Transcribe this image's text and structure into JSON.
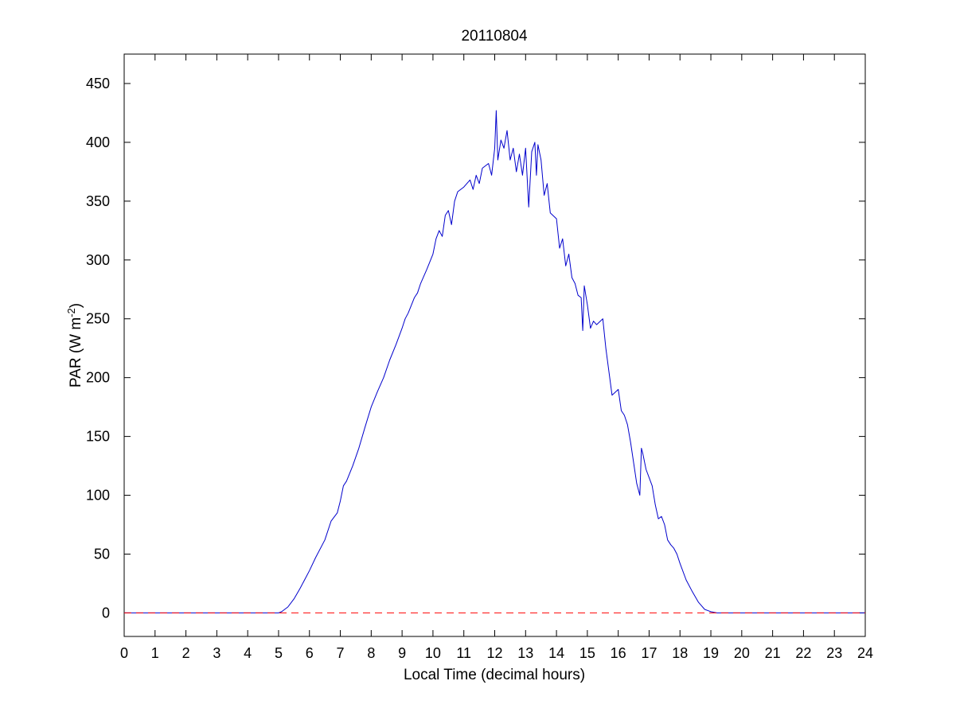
{
  "chart_data": {
    "type": "line",
    "title": "20110804",
    "xlabel": "Local Time (decimal hours)",
    "ylabel": "PAR (W m",
    "ylabel_sup": "-2",
    "ylabel_close": ")",
    "xlim": [
      0,
      24
    ],
    "ylim": [
      -20,
      475
    ],
    "xticks": [
      0,
      1,
      2,
      3,
      4,
      5,
      6,
      7,
      8,
      9,
      10,
      11,
      12,
      13,
      14,
      15,
      16,
      17,
      18,
      19,
      20,
      21,
      22,
      23,
      24
    ],
    "yticks": [
      0,
      50,
      100,
      150,
      200,
      250,
      300,
      350,
      400,
      450
    ],
    "grid": false,
    "colors": {
      "par": "#0000cc",
      "zero_line": "#ff0000"
    },
    "series": [
      {
        "style": "solid",
        "x": [
          0.0,
          5.0,
          5.1,
          5.3,
          5.5,
          5.7,
          6.0,
          6.2,
          6.5,
          6.7,
          6.9,
          7.0,
          7.1,
          7.2,
          7.4,
          7.6,
          7.8,
          8.0,
          8.2,
          8.4,
          8.6,
          8.8,
          9.0,
          9.1,
          9.2,
          9.4,
          9.5,
          9.6,
          9.8,
          10.0,
          10.1,
          10.2,
          10.3,
          10.4,
          10.5,
          10.6,
          10.7,
          10.8,
          11.0,
          11.2,
          11.3,
          11.4,
          11.5,
          11.6,
          11.8,
          11.9,
          12.0,
          12.05,
          12.1,
          12.2,
          12.3,
          12.4,
          12.5,
          12.6,
          12.7,
          12.8,
          12.9,
          13.0,
          13.1,
          13.2,
          13.3,
          13.35,
          13.4,
          13.5,
          13.6,
          13.7,
          13.8,
          14.0,
          14.1,
          14.2,
          14.3,
          14.4,
          14.5,
          14.6,
          14.7,
          14.8,
          14.85,
          14.9,
          15.0,
          15.1,
          15.2,
          15.3,
          15.5,
          15.6,
          15.7,
          15.8,
          16.0,
          16.1,
          16.2,
          16.3,
          16.4,
          16.6,
          16.7,
          16.75,
          16.8,
          16.9,
          17.0,
          17.1,
          17.2,
          17.3,
          17.4,
          17.5,
          17.6,
          17.7,
          17.8,
          17.9,
          18.0,
          18.2,
          18.4,
          18.6,
          18.8,
          19.0,
          19.2,
          19.4,
          19.5,
          19.7,
          20.0,
          24.0
        ],
        "y": [
          0,
          0,
          1,
          5,
          12,
          21,
          36,
          47,
          62,
          78,
          85,
          95,
          108,
          112,
          125,
          140,
          158,
          175,
          188,
          200,
          215,
          228,
          242,
          250,
          255,
          268,
          272,
          280,
          292,
          305,
          318,
          325,
          320,
          338,
          342,
          330,
          350,
          358,
          362,
          368,
          360,
          372,
          365,
          378,
          382,
          372,
          395,
          427,
          385,
          402,
          395,
          410,
          385,
          395,
          375,
          390,
          372,
          395,
          345,
          392,
          400,
          372,
          398,
          385,
          355,
          365,
          340,
          335,
          310,
          318,
          295,
          305,
          285,
          280,
          270,
          268,
          240,
          278,
          262,
          242,
          248,
          245,
          250,
          225,
          205,
          185,
          190,
          172,
          168,
          160,
          145,
          110,
          100,
          140,
          135,
          122,
          115,
          108,
          92,
          80,
          82,
          75,
          62,
          58,
          55,
          50,
          42,
          28,
          18,
          9,
          3,
          1,
          0,
          0,
          0,
          0,
          0,
          0
        ]
      },
      {
        "style": "dashed",
        "x": [
          0,
          24
        ],
        "y": [
          0,
          0
        ]
      }
    ]
  }
}
